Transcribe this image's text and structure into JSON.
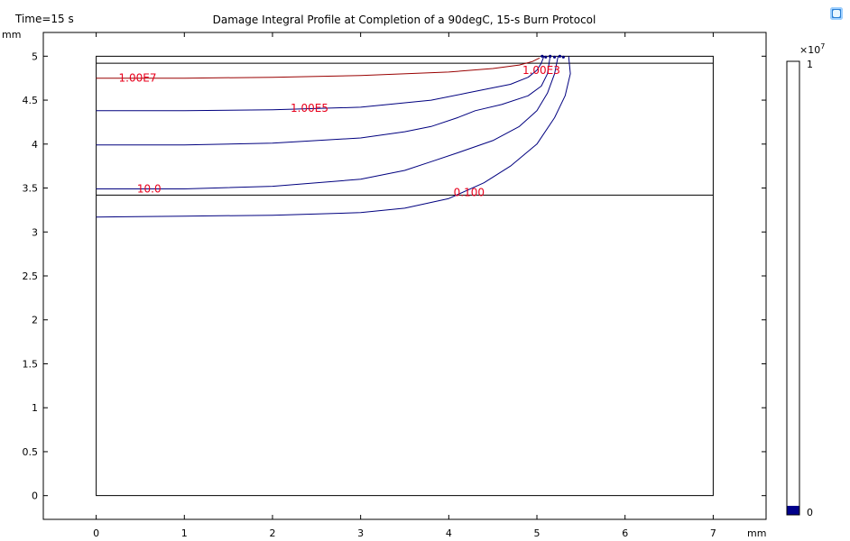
{
  "header": {
    "time_label": "Time=15 s"
  },
  "chart_data": {
    "type": "contour",
    "title": "Damage Integral Profile at Completion of a 90degC, 15-s Burn Protocol",
    "x_unit": "mm",
    "y_unit": "mm",
    "xlim": [
      -0.6,
      7.6
    ],
    "ylim": [
      -0.27,
      5.27
    ],
    "x_ticks": [
      "0",
      "1",
      "2",
      "3",
      "4",
      "5",
      "6",
      "7"
    ],
    "x_tick_values": [
      0,
      1,
      2,
      3,
      4,
      5,
      6,
      7
    ],
    "y_ticks": [
      "0",
      "0.5",
      "1",
      "1.5",
      "2",
      "2.5",
      "3",
      "3.5",
      "4",
      "4.5",
      "5"
    ],
    "y_tick_values": [
      0,
      0.5,
      1,
      1.5,
      2,
      2.5,
      3,
      3.5,
      4,
      4.5,
      5
    ],
    "domain": {
      "outline": [
        [
          0,
          0
        ],
        [
          7,
          0
        ],
        [
          7,
          5
        ],
        [
          0,
          5
        ]
      ],
      "boundaries": [
        {
          "name": "epidermis-boundary",
          "y": 4.92
        },
        {
          "name": "dermis-boundary",
          "y": 3.42
        }
      ]
    },
    "contours": [
      {
        "name": "contour-1e7",
        "level": 10000000,
        "color": "#990000",
        "points": [
          [
            0,
            4.75
          ],
          [
            1,
            4.75
          ],
          [
            2,
            4.76
          ],
          [
            3,
            4.78
          ],
          [
            4,
            4.82
          ],
          [
            4.5,
            4.86
          ],
          [
            4.8,
            4.9
          ],
          [
            4.95,
            4.94
          ],
          [
            5.03,
            4.98
          ]
        ]
      },
      {
        "name": "contour-1e5",
        "level": 100000,
        "color": "#00007f",
        "points": [
          [
            0,
            4.38
          ],
          [
            1,
            4.38
          ],
          [
            2,
            4.39
          ],
          [
            3,
            4.42
          ],
          [
            3.8,
            4.5
          ],
          [
            4.2,
            4.58
          ],
          [
            4.5,
            4.64
          ],
          [
            4.7,
            4.68
          ],
          [
            4.9,
            4.76
          ],
          [
            5.0,
            4.84
          ],
          [
            5.05,
            4.92
          ],
          [
            5.08,
            5.0
          ]
        ]
      },
      {
        "name": "contour-1e3",
        "level": 1000,
        "color": "#00007f",
        "points": [
          [
            0,
            3.99
          ],
          [
            1,
            3.99
          ],
          [
            2,
            4.01
          ],
          [
            3,
            4.07
          ],
          [
            3.5,
            4.14
          ],
          [
            3.8,
            4.2
          ],
          [
            4.1,
            4.3
          ],
          [
            4.3,
            4.38
          ],
          [
            4.6,
            4.45
          ],
          [
            4.9,
            4.55
          ],
          [
            5.05,
            4.66
          ],
          [
            5.12,
            4.8
          ],
          [
            5.15,
            5.0
          ]
        ]
      },
      {
        "name": "contour-10",
        "level": 10,
        "color": "#00007f",
        "points": [
          [
            0,
            3.49
          ],
          [
            1,
            3.49
          ],
          [
            2,
            3.52
          ],
          [
            3,
            3.6
          ],
          [
            3.5,
            3.7
          ],
          [
            3.8,
            3.8
          ],
          [
            4.1,
            3.9
          ],
          [
            4.5,
            4.04
          ],
          [
            4.8,
            4.2
          ],
          [
            5.0,
            4.38
          ],
          [
            5.12,
            4.58
          ],
          [
            5.2,
            4.8
          ],
          [
            5.24,
            5.0
          ]
        ]
      },
      {
        "name": "contour-0.1",
        "level": 0.1,
        "color": "#00007f",
        "points": [
          [
            0,
            3.17
          ],
          [
            1,
            3.18
          ],
          [
            2,
            3.19
          ],
          [
            3,
            3.22
          ],
          [
            3.5,
            3.27
          ],
          [
            4,
            3.38
          ],
          [
            4.4,
            3.56
          ],
          [
            4.7,
            3.75
          ],
          [
            5.0,
            4.0
          ],
          [
            5.2,
            4.3
          ],
          [
            5.32,
            4.55
          ],
          [
            5.38,
            4.8
          ],
          [
            5.36,
            5.0
          ]
        ]
      }
    ],
    "contour_labels": [
      {
        "name": "label-1e7",
        "text": "1.00E7",
        "x": 0.47,
        "y": 4.75
      },
      {
        "name": "label-1e5",
        "text": "1.00E5",
        "x": 2.42,
        "y": 4.41
      },
      {
        "name": "label-1e3",
        "text": "1.00E3",
        "x": 5.05,
        "y": 4.84
      },
      {
        "name": "label-10",
        "text": "10.0",
        "x": 0.6,
        "y": 3.49
      },
      {
        "name": "label-0.1",
        "text": "0.100",
        "x": 4.23,
        "y": 3.45
      }
    ],
    "colorbar": {
      "exponent_label": "×10",
      "exponent": "7",
      "max_label": "1",
      "min_label": "0",
      "max_color": "#8b0000",
      "min_color": "#00008b"
    }
  }
}
